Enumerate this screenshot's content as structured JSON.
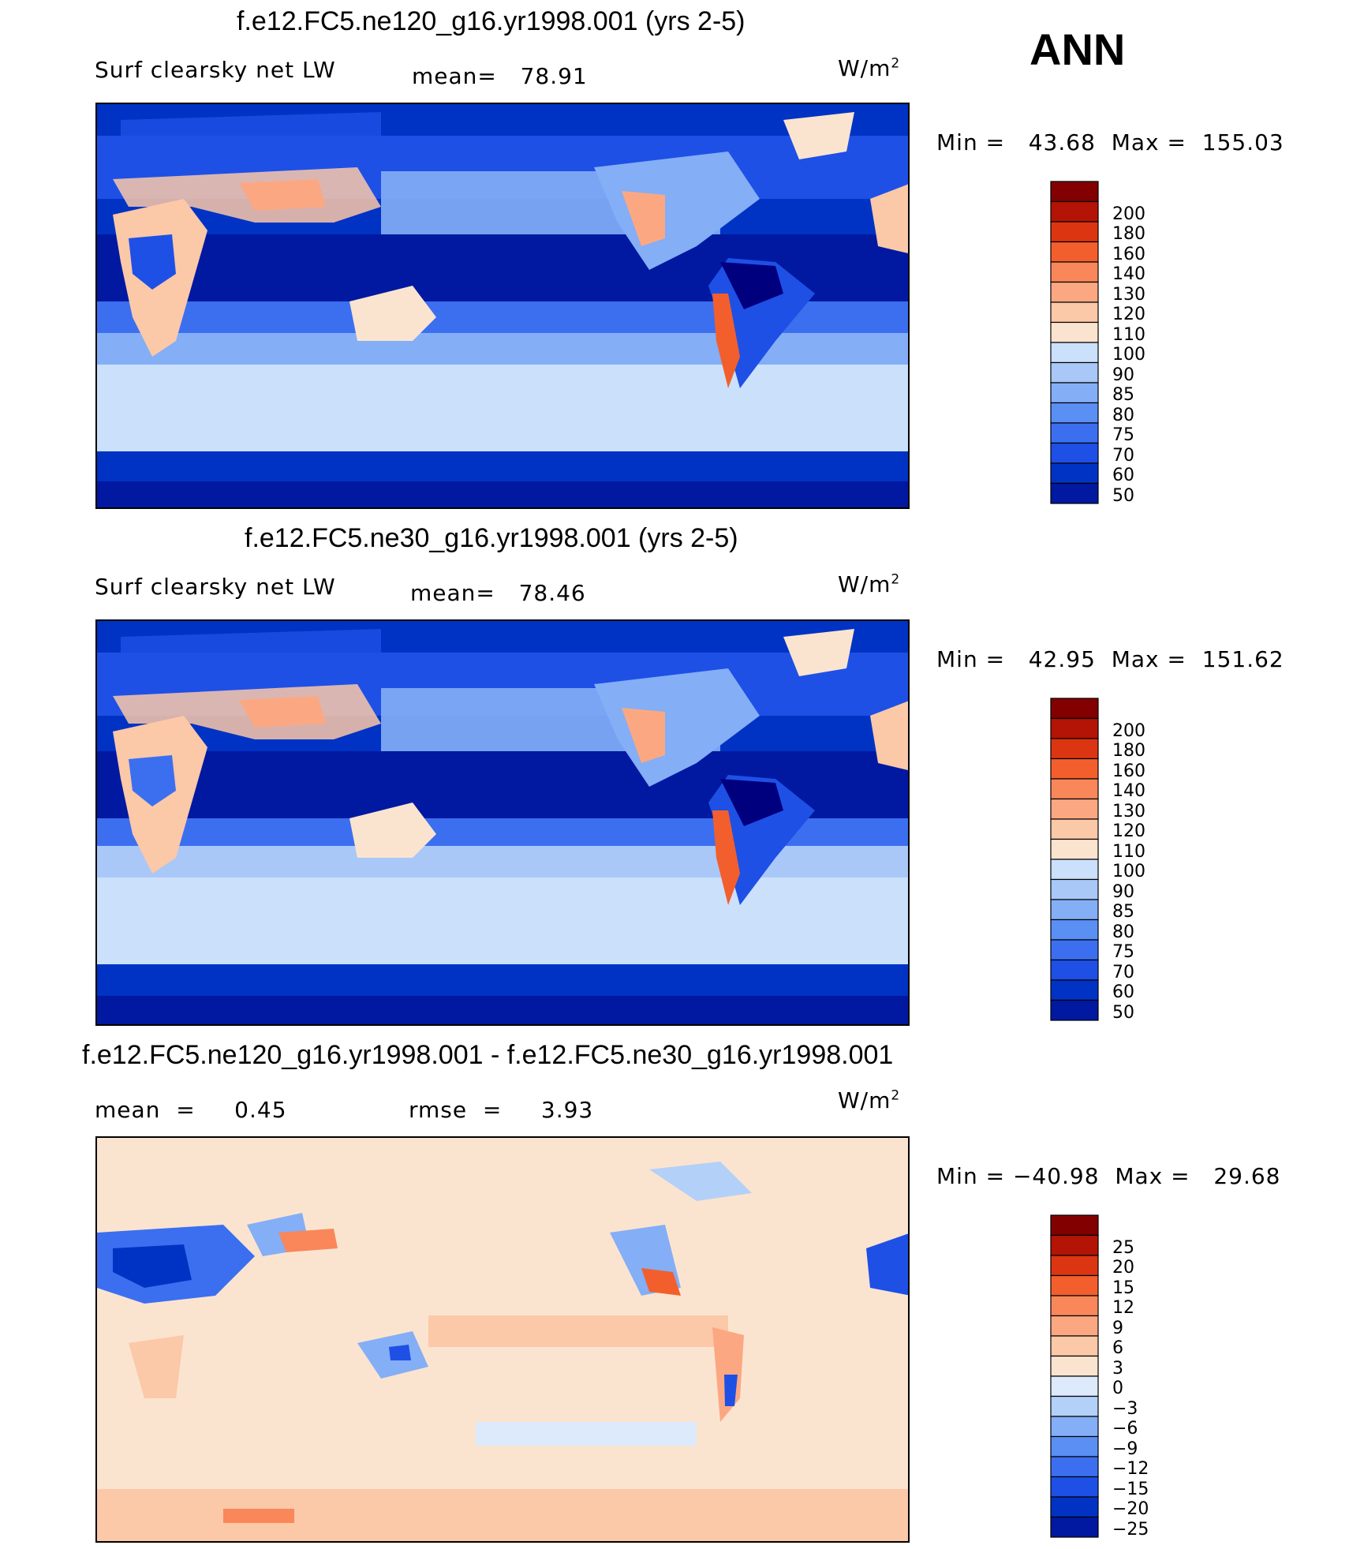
{
  "overall_label": "ANN",
  "units": "W/m",
  "units_sup": "2",
  "palettes": {
    "abs": [
      "#00007f",
      "#0019a0",
      "#0033c4",
      "#1e50e6",
      "#3b6ff0",
      "#5a8ff4",
      "#84aef6",
      "#a9c8f8",
      "#cbe0fb",
      "#fbe4cf",
      "#fbc8a8",
      "#fba882",
      "#f9875a",
      "#f25f2d",
      "#dc3512",
      "#b41405",
      "#820000"
    ],
    "diff": [
      "#00007f",
      "#0019a0",
      "#0033c4",
      "#1e50e6",
      "#3b6ff0",
      "#5a8ff4",
      "#84aef6",
      "#b3d0f8",
      "#dceafc",
      "#fbe4cf",
      "#fbc8a8",
      "#fba882",
      "#f9875a",
      "#f25f2d",
      "#dc3512",
      "#b41405",
      "#820000"
    ]
  },
  "panels": [
    {
      "title": "f.e12.FC5.ne120_g16.yr1998.001 (yrs 2-5)",
      "left_label": "Surf clearsky net LW",
      "stat1": "mean=   78.91",
      "stat2": "",
      "minmax": "Min =   43.68  Max =  155.03"
    },
    {
      "title": "f.e12.FC5.ne30_g16.yr1998.001 (yrs 2-5)",
      "left_label": "Surf clearsky net LW",
      "stat1": "mean=   78.46",
      "stat2": "",
      "minmax": "Min =   42.95  Max =  151.62"
    },
    {
      "title": "f.e12.FC5.ne120_g16.yr1998.001 - f.e12.FC5.ne30_g16.yr1998.001",
      "left_label": "",
      "stat1": "mean  =     0.45",
      "stat2": "rmse  =     3.93",
      "minmax": "Min = −40.98  Max =   29.68"
    }
  ],
  "chart_data": [
    {
      "type": "heatmap",
      "title": "f.e12.FC5.ne120_g16.yr1998.001 (yrs 2-5)",
      "variable": "Surf clearsky net LW",
      "units": "W/m2",
      "mean": 78.91,
      "min": 43.68,
      "max": 155.03,
      "contour_levels": [
        50,
        60,
        70,
        75,
        80,
        85,
        90,
        100,
        110,
        120,
        130,
        140,
        160,
        180,
        200
      ],
      "domain": "global lat-lon, Pacific-centered"
    },
    {
      "type": "heatmap",
      "title": "f.e12.FC5.ne30_g16.yr1998.001 (yrs 2-5)",
      "variable": "Surf clearsky net LW",
      "units": "W/m2",
      "mean": 78.46,
      "min": 42.95,
      "max": 151.62,
      "contour_levels": [
        50,
        60,
        70,
        75,
        80,
        85,
        90,
        100,
        110,
        120,
        130,
        140,
        160,
        180,
        200
      ],
      "domain": "global lat-lon, Pacific-centered"
    },
    {
      "type": "heatmap",
      "title": "f.e12.FC5.ne120_g16.yr1998.001 - f.e12.FC5.ne30_g16.yr1998.001",
      "variable": "difference",
      "units": "W/m2",
      "mean": 0.45,
      "rmse": 3.93,
      "min": -40.98,
      "max": 29.68,
      "contour_levels": [
        -25,
        -20,
        -15,
        -12,
        -9,
        -6,
        -3,
        0,
        3,
        6,
        9,
        12,
        15,
        20,
        25
      ],
      "domain": "global lat-lon, Pacific-centered"
    }
  ],
  "colorbars": [
    {
      "labels": [
        "200",
        "180",
        "160",
        "140",
        "130",
        "120",
        "110",
        "100",
        "90",
        "85",
        "80",
        "75",
        "70",
        "60",
        "50"
      ]
    },
    {
      "labels": [
        "200",
        "180",
        "160",
        "140",
        "130",
        "120",
        "110",
        "100",
        "90",
        "85",
        "80",
        "75",
        "70",
        "60",
        "50"
      ]
    },
    {
      "labels": [
        "25",
        "20",
        "15",
        "12",
        "9",
        "6",
        "3",
        "0",
        "−3",
        "−6",
        "−9",
        "−12",
        "−15",
        "−20",
        "−25"
      ]
    }
  ]
}
